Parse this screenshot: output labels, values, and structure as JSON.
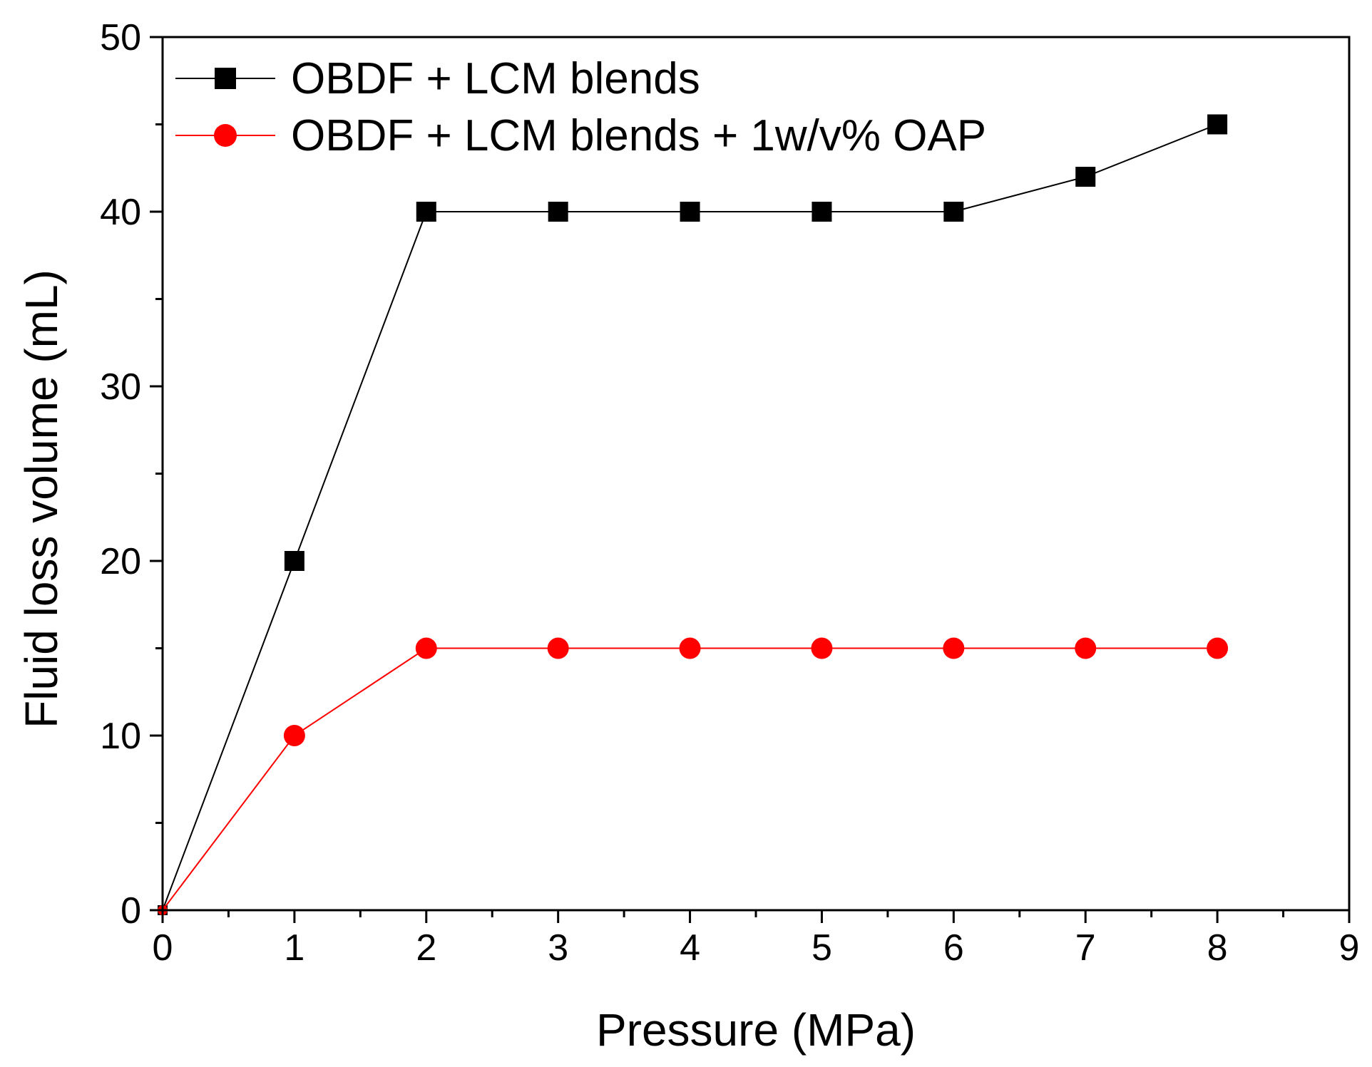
{
  "chart_data": {
    "type": "line",
    "title": "",
    "xlabel": "Pressure (MPa)",
    "ylabel": "Fluid loss volume (mL)",
    "xlim": [
      0,
      9
    ],
    "ylim": [
      0,
      50
    ],
    "xticks": [
      0,
      1,
      2,
      3,
      4,
      5,
      6,
      7,
      8,
      9
    ],
    "yticks": [
      0,
      10,
      20,
      30,
      40,
      50
    ],
    "grid": false,
    "legend_position": "top-left",
    "series": [
      {
        "name": "OBDF + LCM blends",
        "color": "#000000",
        "marker": "square",
        "x": [
          0,
          1,
          2,
          3,
          4,
          5,
          6,
          7,
          8
        ],
        "y": [
          0,
          20,
          40,
          40,
          40,
          40,
          40,
          42,
          45
        ]
      },
      {
        "name": "OBDF + LCM blends + 1w/v% OAP",
        "color": "#ff0000",
        "marker": "circle",
        "x": [
          0,
          1,
          2,
          3,
          4,
          5,
          6,
          7,
          8
        ],
        "y": [
          0,
          10,
          15,
          15,
          15,
          15,
          15,
          15,
          15
        ]
      }
    ]
  }
}
